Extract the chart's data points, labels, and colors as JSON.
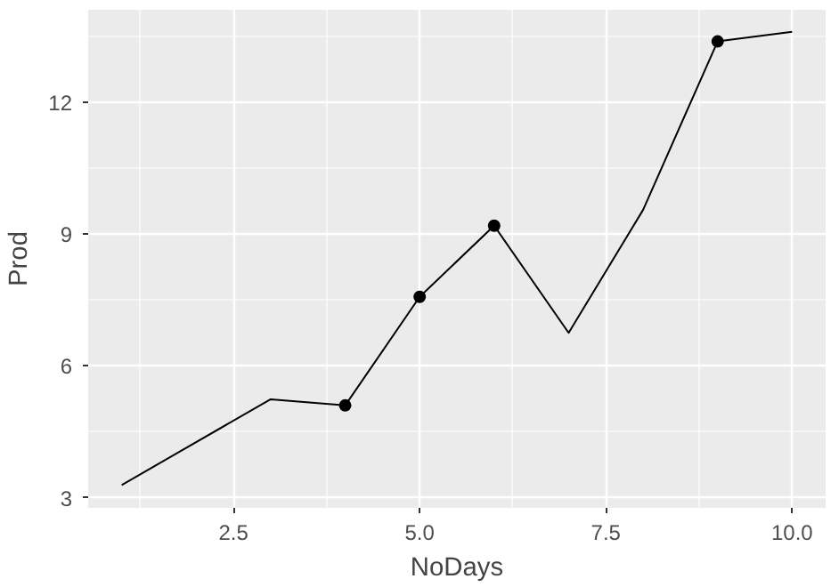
{
  "chart_data": {
    "type": "line",
    "xlabel": "NoDays",
    "ylabel": "Prod",
    "xlim": [
      0.55,
      10.45
    ],
    "ylim": [
      2.77,
      14.1
    ],
    "xticks": [
      {
        "value": 2.5,
        "label": "2.5"
      },
      {
        "value": 5,
        "label": "5.0"
      },
      {
        "value": 7.5,
        "label": "7.5"
      },
      {
        "value": 10,
        "label": "10.0"
      }
    ],
    "yticks": [
      3,
      6,
      9,
      12
    ],
    "grid": true,
    "series": [
      {
        "color": "#000000",
        "x": [
          1,
          3,
          4,
          5,
          6,
          7,
          8,
          9,
          10
        ],
        "values": [
          3.29,
          5.24,
          5.1,
          7.57,
          9.19,
          6.75,
          9.55,
          13.38,
          13.6
        ]
      },
      {
        "type": "scatter",
        "color": "#000000",
        "marker": "circle",
        "x": [
          4,
          5,
          6,
          9
        ],
        "values": [
          5.1,
          7.57,
          9.19,
          13.38
        ]
      }
    ]
  }
}
